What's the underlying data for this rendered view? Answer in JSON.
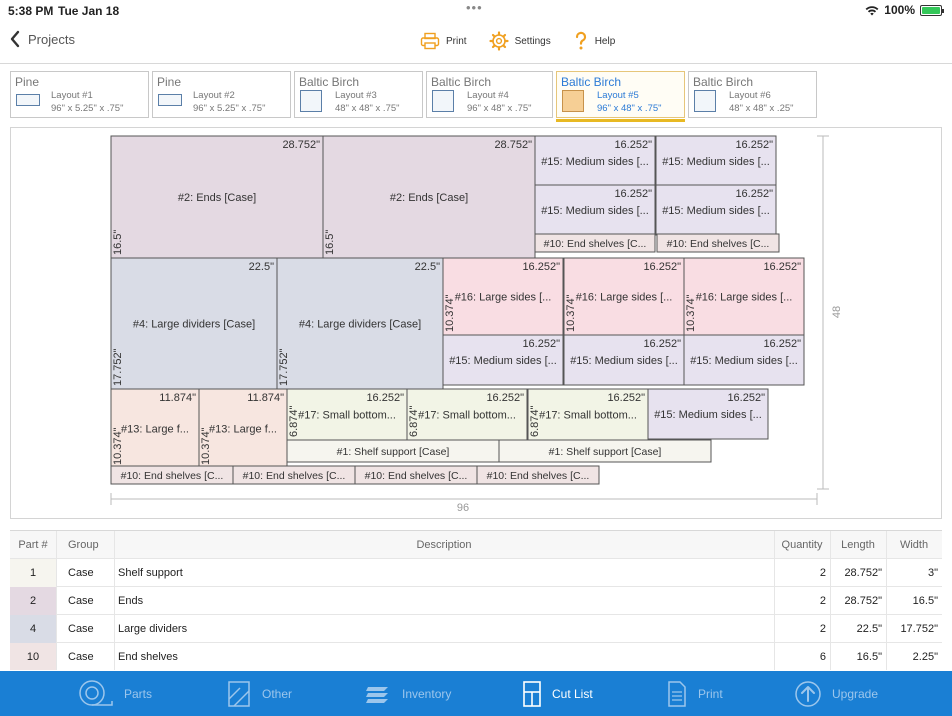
{
  "status": {
    "time": "5:38 PM",
    "date": "Tue Jan 18",
    "battery": "100%",
    "battery_level": 1.0,
    "dots": "•••"
  },
  "nav": {
    "back_label": "Projects",
    "print_label": "Print",
    "settings_label": "Settings",
    "help_label": "Help"
  },
  "tabs": [
    {
      "material": "Pine",
      "name": "Layout #1",
      "dims": "96\" x 5.25\" x .75\"",
      "swatch": "wide",
      "active": false
    },
    {
      "material": "Pine",
      "name": "Layout #2",
      "dims": "96\" x 5.25\" x .75\"",
      "swatch": "wide",
      "active": false
    },
    {
      "material": "Baltic Birch",
      "name": "Layout #3",
      "dims": "48\" x 48\" x .75\"",
      "swatch": "square",
      "active": false
    },
    {
      "material": "Baltic Birch",
      "name": "Layout #4",
      "dims": "96\" x 48\" x .75\"",
      "swatch": "square",
      "active": false
    },
    {
      "material": "Baltic Birch",
      "name": "Layout #5",
      "dims": "96\" x 48\" x .75\"",
      "swatch": "square",
      "active": true
    },
    {
      "material": "Baltic Birch",
      "name": "Layout #6",
      "dims": "48\" x 48\" x .25\"",
      "swatch": "square",
      "active": false
    }
  ],
  "sheet": {
    "width_label": "96",
    "height_label": "48",
    "width_in": 96,
    "height_in": 48
  },
  "colors": {
    "ends": "#e4d9e2",
    "dividers": "#d9dce6",
    "medium": "#e7e2ef",
    "large": "#f9dde3",
    "small": "#f2f4e6",
    "end_shelves": "#f0e4e4",
    "shelf_support": "#f6f5ef",
    "large_f": "#f7e6e0",
    "accent": "#1a7fd4",
    "tab_underline": "#e8b923"
  },
  "pieces": [
    {
      "label": "#2: Ends [Case]",
      "top": "28.752\"",
      "side": "16.5\"",
      "color": "ends"
    },
    {
      "label": "#2: Ends [Case]",
      "top": "28.752\"",
      "side": "16.5\"",
      "color": "ends"
    },
    {
      "label": "#15: Medium sides [...",
      "top": "16.252\"",
      "color": "medium"
    },
    {
      "label": "#15: Medium sides [...",
      "top": "16.252\"",
      "color": "medium"
    },
    {
      "label": "#15: Medium sides [...",
      "top": "16.252\"",
      "color": "medium"
    },
    {
      "label": "#15: Medium sides [...",
      "top": "16.252\"",
      "color": "medium"
    },
    {
      "label": "#10: End shelves [C...",
      "color": "end_shelves"
    },
    {
      "label": "#10: End shelves [C...",
      "color": "end_shelves"
    },
    {
      "label": "#4: Large dividers [Case]",
      "top": "22.5\"",
      "side": "17.752\"",
      "color": "dividers"
    },
    {
      "label": "#4: Large dividers [Case]",
      "top": "22.5\"",
      "side": "17.752\"",
      "color": "dividers"
    },
    {
      "label": "#16: Large sides [...",
      "top": "16.252\"",
      "side": "10.374\"",
      "color": "large"
    },
    {
      "label": "#16: Large sides [...",
      "top": "16.252\"",
      "side": "10.374\"",
      "color": "large"
    },
    {
      "label": "#16: Large sides [...",
      "top": "16.252\"",
      "side": "10.374\"",
      "color": "large"
    },
    {
      "label": "#15: Medium sides [...",
      "top": "16.252\"",
      "color": "medium"
    },
    {
      "label": "#15: Medium sides [...",
      "top": "16.252\"",
      "color": "medium"
    },
    {
      "label": "#15: Medium sides [...",
      "top": "16.252\"",
      "color": "medium"
    },
    {
      "label": "#13: Large f...",
      "top": "11.874\"",
      "side": "10.374\"",
      "color": "large_f"
    },
    {
      "label": "#13: Large f...",
      "top": "11.874\"",
      "side": "10.374\"",
      "color": "large_f"
    },
    {
      "label": "#17: Small bottom...",
      "top": "16.252\"",
      "side": "6.874\"",
      "color": "small"
    },
    {
      "label": "#17: Small bottom...",
      "top": "16.252\"",
      "side": "6.874\"",
      "color": "small"
    },
    {
      "label": "#17: Small bottom...",
      "top": "16.252\"",
      "side": "6.874\"",
      "color": "small"
    },
    {
      "label": "#15: Medium sides [...",
      "top": "16.252\"",
      "color": "medium"
    },
    {
      "label": "#1: Shelf support [Case]",
      "color": "shelf_support"
    },
    {
      "label": "#1: Shelf support [Case]",
      "color": "shelf_support"
    },
    {
      "label": "#10: End shelves [C...",
      "color": "end_shelves"
    },
    {
      "label": "#10: End shelves [C...",
      "color": "end_shelves"
    },
    {
      "label": "#10: End shelves [C...",
      "color": "end_shelves"
    },
    {
      "label": "#10: End shelves [C...",
      "color": "end_shelves"
    }
  ],
  "table": {
    "headers": {
      "part": "Part #",
      "group": "Group",
      "description": "Description",
      "quantity": "Quantity",
      "length": "Length",
      "width": "Width"
    },
    "rows": [
      {
        "part": "1",
        "group": "Case",
        "description": "Shelf support",
        "quantity": "2",
        "length": "28.752\"",
        "width": "3\"",
        "color": "#f6f5ef"
      },
      {
        "part": "2",
        "group": "Case",
        "description": "Ends",
        "quantity": "2",
        "length": "28.752\"",
        "width": "16.5\"",
        "color": "#e4d9e2"
      },
      {
        "part": "4",
        "group": "Case",
        "description": "Large dividers",
        "quantity": "2",
        "length": "22.5\"",
        "width": "17.752\"",
        "color": "#d9dce6"
      },
      {
        "part": "10",
        "group": "Case",
        "description": "End shelves",
        "quantity": "6",
        "length": "16.5\"",
        "width": "2.25\"",
        "color": "#f0e4e4"
      }
    ]
  },
  "bottom_tabs": [
    {
      "label": "Parts",
      "icon": "tape-measure-icon",
      "active": false
    },
    {
      "label": "Other",
      "icon": "board-icon",
      "active": false
    },
    {
      "label": "Inventory",
      "icon": "stack-icon",
      "active": false
    },
    {
      "label": "Cut List",
      "icon": "cut-list-icon",
      "active": true
    },
    {
      "label": "Print",
      "icon": "document-icon",
      "active": false
    },
    {
      "label": "Upgrade",
      "icon": "upgrade-arrow-icon",
      "active": false
    }
  ]
}
